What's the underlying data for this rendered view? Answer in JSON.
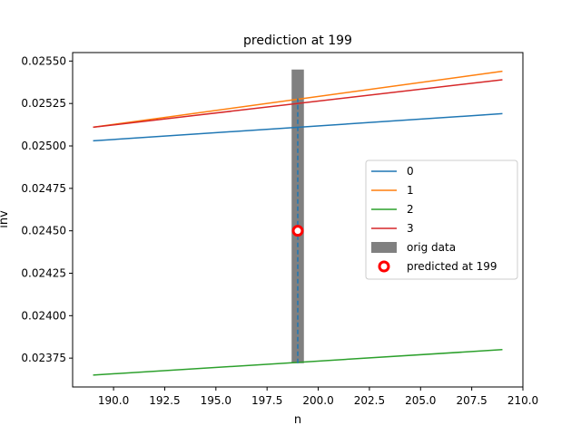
{
  "chart_data": {
    "type": "line",
    "title": "prediction at 199",
    "xlabel": "n",
    "ylabel": "inv",
    "xlim": [
      188.0,
      210.0
    ],
    "ylim": [
      0.02358,
      0.02555
    ],
    "xticks": [
      190.0,
      192.5,
      195.0,
      197.5,
      200.0,
      202.5,
      205.0,
      207.5,
      210.0
    ],
    "xtick_labels": [
      "190.0",
      "192.5",
      "195.0",
      "197.5",
      "200.0",
      "202.5",
      "205.0",
      "207.5",
      "210.0"
    ],
    "yticks": [
      0.02375,
      0.024,
      0.02425,
      0.0245,
      0.02475,
      0.025,
      0.02525,
      0.0255
    ],
    "ytick_labels": [
      "0.02375",
      "0.02400",
      "0.02425",
      "0.02450",
      "0.02475",
      "0.02500",
      "0.02525",
      "0.02550"
    ],
    "grid": false,
    "legend_position": "center-right",
    "series": [
      {
        "name": "0",
        "color": "#1f77b4",
        "x": [
          189,
          209
        ],
        "y": [
          0.02503,
          0.02519
        ]
      },
      {
        "name": "1",
        "color": "#ff7f0e",
        "x": [
          189,
          209
        ],
        "y": [
          0.02511,
          0.02544
        ]
      },
      {
        "name": "2",
        "color": "#2ca02c",
        "x": [
          189,
          209
        ],
        "y": [
          0.02365,
          0.0238
        ]
      },
      {
        "name": "3",
        "color": "#d62728",
        "x": [
          189,
          209
        ],
        "y": [
          0.02511,
          0.02539
        ]
      }
    ],
    "orig_data": {
      "name": "orig data",
      "color": "#808080",
      "x": 199,
      "bar_width": 0.6,
      "y_low": 0.02372,
      "y_high": 0.02545
    },
    "vertical_dashed": {
      "color": "#1f77b4",
      "x": 199,
      "y_low": 0.02372,
      "y_high": 0.02528
    },
    "predicted": {
      "name": "predicted at 199",
      "color": "#ff0000",
      "x": 199,
      "y": 0.0245
    }
  }
}
